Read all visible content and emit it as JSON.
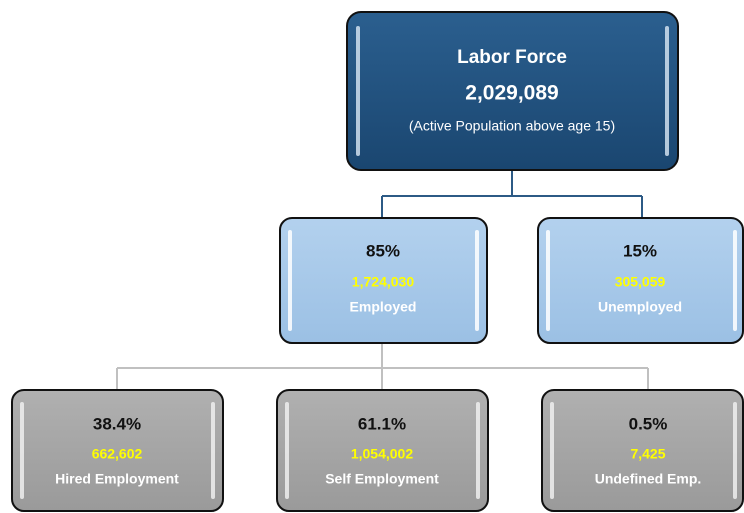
{
  "root": {
    "title": "Labor Force",
    "value": "2,029,089",
    "note": "(Active Population above age 15)"
  },
  "level2": [
    {
      "percent": "85%",
      "value": "1,724,030",
      "label": "Employed"
    },
    {
      "percent": "15%",
      "value": "305,059",
      "label": "Unemployed"
    }
  ],
  "level3": [
    {
      "percent": "38.4%",
      "value": "662,602",
      "label": "Hired Employment"
    },
    {
      "percent": "61.1%",
      "value": "1,054,002",
      "label": "Self Employment"
    },
    {
      "percent": "0.5%",
      "value": "7,425",
      "label": "Undefined Emp."
    }
  ]
}
